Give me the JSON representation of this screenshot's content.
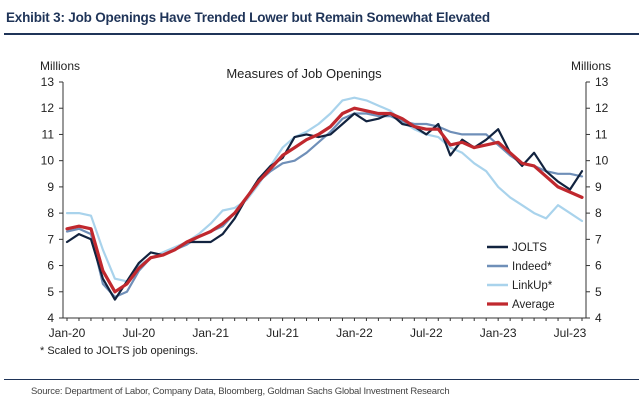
{
  "header": {
    "title": "Exhibit 3: Job Openings Have Trended Lower but Remain Somewhat Elevated"
  },
  "footer": {
    "footnote": "* Scaled to JOLTS job openings.",
    "source": "Source: Department of Labor, Company Data, Bloomberg, Goldman Sachs Global Investment Research"
  },
  "chart_data": {
    "type": "line",
    "title": "Measures of Job Openings",
    "ylabel_left": "Millions",
    "ylabel_right": "Millions",
    "ylim": [
      4,
      13
    ],
    "yticks": [
      4,
      5,
      6,
      7,
      8,
      9,
      10,
      11,
      12,
      13
    ],
    "x_tick_labels": [
      "Jan-20",
      "Jul-20",
      "Jan-21",
      "Jul-21",
      "Jan-22",
      "Jul-22",
      "Jan-23",
      "Jul-23"
    ],
    "x": [
      "2020-01",
      "2020-02",
      "2020-03",
      "2020-04",
      "2020-05",
      "2020-06",
      "2020-07",
      "2020-08",
      "2020-09",
      "2020-10",
      "2020-11",
      "2020-12",
      "2021-01",
      "2021-02",
      "2021-03",
      "2021-04",
      "2021-05",
      "2021-06",
      "2021-07",
      "2021-08",
      "2021-09",
      "2021-10",
      "2021-11",
      "2021-12",
      "2022-01",
      "2022-02",
      "2022-03",
      "2022-04",
      "2022-05",
      "2022-06",
      "2022-07",
      "2022-08",
      "2022-09",
      "2022-10",
      "2022-11",
      "2022-12",
      "2023-01",
      "2023-02",
      "2023-03",
      "2023-04",
      "2023-05",
      "2023-06",
      "2023-07",
      "2023-08"
    ],
    "grid": false,
    "legend_position": "bottom-right",
    "series": [
      {
        "name": "JOLTS",
        "color": "#12233f",
        "values": [
          6.9,
          7.2,
          7.0,
          5.5,
          4.7,
          5.4,
          6.1,
          6.5,
          6.4,
          6.6,
          6.9,
          6.9,
          6.9,
          7.2,
          7.8,
          8.6,
          9.3,
          9.8,
          10.1,
          10.9,
          11.0,
          10.9,
          11.0,
          11.4,
          11.8,
          11.5,
          11.6,
          11.8,
          11.4,
          11.3,
          11.0,
          11.4,
          10.2,
          10.8,
          10.5,
          10.8,
          11.2,
          10.3,
          9.8,
          10.3,
          9.6,
          9.2,
          8.9,
          9.6
        ]
      },
      {
        "name": "Indeed*",
        "color": "#6f8fb8",
        "values": [
          7.3,
          7.4,
          7.2,
          5.3,
          4.8,
          5.0,
          5.8,
          6.3,
          6.4,
          6.6,
          6.8,
          7.1,
          7.3,
          7.5,
          8.0,
          8.6,
          9.2,
          9.6,
          9.9,
          10.0,
          10.3,
          10.7,
          11.1,
          11.6,
          11.8,
          11.8,
          11.7,
          11.7,
          11.5,
          11.4,
          11.4,
          11.3,
          11.1,
          11.0,
          11.0,
          11.0,
          10.6,
          10.2,
          9.9,
          9.8,
          9.6,
          9.5,
          9.5,
          9.4
        ]
      },
      {
        "name": "LinkUp*",
        "color": "#a9d3ec",
        "values": [
          8.0,
          8.0,
          7.9,
          6.6,
          5.5,
          5.4,
          6.0,
          6.3,
          6.5,
          6.7,
          6.9,
          7.2,
          7.6,
          8.1,
          8.2,
          8.5,
          9.1,
          9.8,
          10.5,
          10.9,
          11.1,
          11.4,
          11.8,
          12.3,
          12.4,
          12.3,
          12.1,
          11.9,
          11.5,
          11.2,
          11.0,
          10.9,
          10.5,
          10.3,
          9.9,
          9.6,
          9.0,
          8.6,
          8.3,
          8.0,
          7.8,
          8.3,
          8.0,
          7.7
        ]
      },
      {
        "name": "Average",
        "color": "#c0282e",
        "values": [
          7.4,
          7.5,
          7.4,
          5.8,
          5.0,
          5.3,
          5.9,
          6.3,
          6.4,
          6.6,
          6.9,
          7.1,
          7.3,
          7.6,
          8.0,
          8.6,
          9.2,
          9.7,
          10.2,
          10.5,
          10.8,
          11.0,
          11.3,
          11.8,
          12.0,
          11.9,
          11.8,
          11.8,
          11.6,
          11.3,
          11.2,
          11.2,
          10.6,
          10.7,
          10.5,
          10.6,
          10.7,
          10.3,
          9.9,
          9.8,
          9.4,
          9.0,
          8.8,
          8.6
        ]
      }
    ]
  }
}
